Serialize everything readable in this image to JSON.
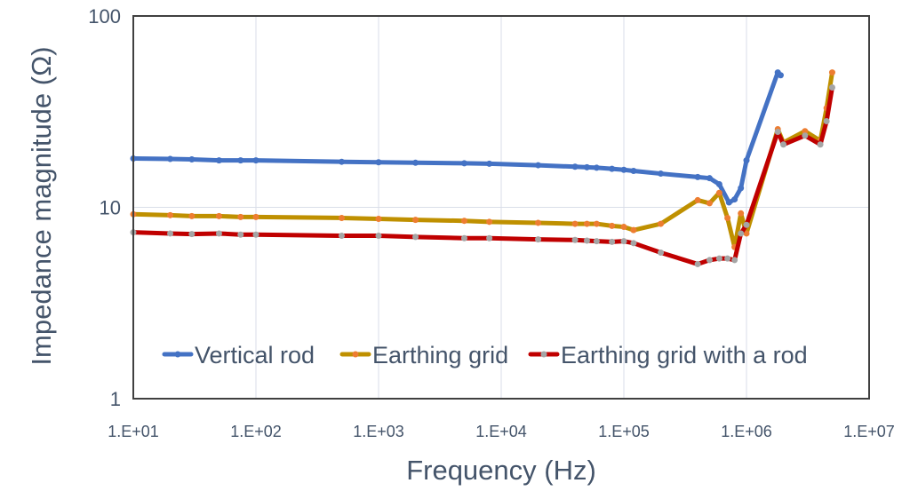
{
  "chart_data": {
    "type": "line",
    "title": "",
    "xlabel": "Frequency (Hz)",
    "ylabel": "Impedance magnitude (Ω)",
    "x_scale": "log",
    "y_scale": "log",
    "xlim": [
      10,
      10000000
    ],
    "ylim": [
      1,
      100
    ],
    "x_ticks": [
      10,
      100,
      1000,
      10000,
      100000,
      1000000,
      10000000
    ],
    "x_tick_labels": [
      "1.E+01",
      "1.E+02",
      "1.E+03",
      "1.E+04",
      "1.E+05",
      "1.E+06",
      "1.E+07"
    ],
    "y_ticks": [
      1,
      10,
      100
    ],
    "y_tick_labels": [
      "1",
      "10",
      "100"
    ],
    "grid": true,
    "legend_position": "bottom-inside",
    "series": [
      {
        "name": "Vertical rod",
        "line_color": "#4472C4",
        "marker_color": "#4472C4",
        "x": [
          10,
          20,
          30,
          50,
          75,
          100,
          500,
          1000,
          2000,
          5000,
          8000,
          20000,
          40000,
          50000,
          60000,
          80000,
          100000,
          120000,
          200000,
          400000,
          500000,
          600000,
          720000,
          800000,
          900000,
          1000000,
          1800000,
          1900000
        ],
        "y": [
          18,
          17.9,
          17.8,
          17.6,
          17.6,
          17.6,
          17.3,
          17.2,
          17.1,
          17,
          16.9,
          16.6,
          16.3,
          16.2,
          16.1,
          15.9,
          15.7,
          15.5,
          15,
          14.4,
          14.2,
          13.2,
          10.6,
          11,
          12.6,
          17.6,
          50.7,
          49
        ]
      },
      {
        "name": "Earthing grid",
        "line_color": "#BF9000",
        "marker_color": "#ED7D31",
        "x": [
          10,
          20,
          30,
          50,
          75,
          100,
          500,
          1000,
          2000,
          5000,
          8000,
          20000,
          40000,
          50000,
          60000,
          80000,
          100000,
          120000,
          200000,
          400000,
          500000,
          600000,
          700000,
          800000,
          900000,
          1000000,
          1800000,
          2000000,
          3000000,
          4000000,
          4500000,
          5000000
        ],
        "y": [
          9.2,
          9.1,
          9.0,
          9.0,
          8.9,
          8.9,
          8.8,
          8.7,
          8.6,
          8.5,
          8.4,
          8.3,
          8.2,
          8.2,
          8.2,
          8.0,
          7.9,
          7.6,
          8.2,
          10.9,
          10.5,
          11.9,
          8.8,
          6.2,
          9.3,
          7.3,
          25.6,
          21.8,
          25,
          22.3,
          33,
          50.7
        ]
      },
      {
        "name": "Earthing grid with a rod",
        "line_color": "#C00000",
        "marker_color": "#A5A5A5",
        "x": [
          10,
          20,
          30,
          50,
          75,
          100,
          500,
          1000,
          2000,
          5000,
          8000,
          20000,
          40000,
          50000,
          60000,
          80000,
          100000,
          120000,
          200000,
          400000,
          500000,
          600000,
          700000,
          800000,
          900000,
          1000000,
          1800000,
          2000000,
          3000000,
          4000000,
          4500000,
          5000000
        ],
        "y": [
          7.4,
          7.3,
          7.25,
          7.3,
          7.2,
          7.2,
          7.1,
          7.1,
          7.0,
          6.9,
          6.9,
          6.8,
          6.75,
          6.7,
          6.65,
          6.6,
          6.65,
          6.5,
          5.8,
          5.05,
          5.3,
          5.4,
          5.4,
          5.3,
          7.3,
          8.1,
          24.8,
          21.3,
          23.7,
          21.3,
          28.2,
          42.3
        ]
      }
    ]
  }
}
